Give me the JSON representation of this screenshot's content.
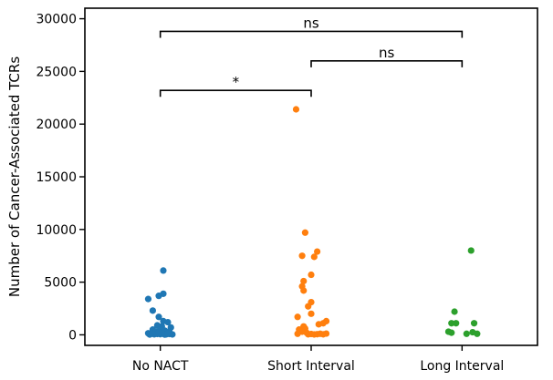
{
  "chart_data": {
    "type": "scatter",
    "style": "strip",
    "categories": [
      "No NACT",
      "Short Interval",
      "Long Interval"
    ],
    "ylabel": "Number of Cancer-Associated TCRs",
    "xlabel": "",
    "ylim": [
      -1000,
      31000
    ],
    "yticks": [
      0,
      5000,
      10000,
      15000,
      20000,
      25000,
      30000
    ],
    "grid": false,
    "series": [
      {
        "category": "No NACT",
        "color": "#1f77b4",
        "points": [
          {
            "x": -0.08,
            "y": 3400
          },
          {
            "x": -0.05,
            "y": 2300
          },
          {
            "x": -0.01,
            "y": 3700
          },
          {
            "x": 0.02,
            "y": 3900
          },
          {
            "x": 0.02,
            "y": 6100
          },
          {
            "x": -0.01,
            "y": 1700
          },
          {
            "x": 0.02,
            "y": 1300
          },
          {
            "x": 0.05,
            "y": 1200
          },
          {
            "x": -0.02,
            "y": 900
          },
          {
            "x": 0.01,
            "y": 800
          },
          {
            "x": 0.07,
            "y": 700
          },
          {
            "x": -0.05,
            "y": 500
          },
          {
            "x": 0.0,
            "y": 500
          },
          {
            "x": 0.03,
            "y": 400
          },
          {
            "x": -0.03,
            "y": 300
          },
          {
            "x": 0.06,
            "y": 300
          },
          {
            "x": -0.08,
            "y": 150
          },
          {
            "x": -0.06,
            "y": 100
          },
          {
            "x": -0.04,
            "y": 50
          },
          {
            "x": -0.02,
            "y": 80
          },
          {
            "x": 0.0,
            "y": 60
          },
          {
            "x": 0.02,
            "y": 100
          },
          {
            "x": 0.04,
            "y": 50
          },
          {
            "x": 0.06,
            "y": 80
          },
          {
            "x": 0.08,
            "y": 40
          },
          {
            "x": -0.07,
            "y": 30
          },
          {
            "x": 0.03,
            "y": 20
          },
          {
            "x": -0.01,
            "y": 200
          },
          {
            "x": 0.05,
            "y": 150
          }
        ]
      },
      {
        "category": "Short Interval",
        "color": "#ff7f0e",
        "points": [
          {
            "x": -0.1,
            "y": 21400
          },
          {
            "x": -0.04,
            "y": 9700
          },
          {
            "x": 0.04,
            "y": 7900
          },
          {
            "x": 0.02,
            "y": 7400
          },
          {
            "x": -0.06,
            "y": 7500
          },
          {
            "x": 0.0,
            "y": 5700
          },
          {
            "x": -0.05,
            "y": 5100
          },
          {
            "x": -0.06,
            "y": 4600
          },
          {
            "x": -0.05,
            "y": 4200
          },
          {
            "x": 0.0,
            "y": 3100
          },
          {
            "x": -0.02,
            "y": 2700
          },
          {
            "x": 0.0,
            "y": 2000
          },
          {
            "x": -0.09,
            "y": 1700
          },
          {
            "x": 0.1,
            "y": 1300
          },
          {
            "x": 0.08,
            "y": 1100
          },
          {
            "x": 0.05,
            "y": 1000
          },
          {
            "x": -0.05,
            "y": 800
          },
          {
            "x": -0.04,
            "y": 600
          },
          {
            "x": -0.08,
            "y": 500
          },
          {
            "x": -0.06,
            "y": 300
          },
          {
            "x": -0.09,
            "y": 100
          },
          {
            "x": -0.02,
            "y": 50
          },
          {
            "x": 0.0,
            "y": 80
          },
          {
            "x": 0.02,
            "y": 40
          },
          {
            "x": 0.04,
            "y": 60
          },
          {
            "x": 0.06,
            "y": 100
          },
          {
            "x": 0.08,
            "y": 50
          },
          {
            "x": 0.1,
            "y": 120
          },
          {
            "x": -0.03,
            "y": 200
          }
        ]
      },
      {
        "category": "Long Interval",
        "color": "#2ca02c",
        "points": [
          {
            "x": 0.06,
            "y": 8000
          },
          {
            "x": -0.05,
            "y": 2200
          },
          {
            "x": -0.07,
            "y": 1100
          },
          {
            "x": -0.04,
            "y": 1100
          },
          {
            "x": 0.08,
            "y": 1100
          },
          {
            "x": -0.09,
            "y": 300
          },
          {
            "x": -0.07,
            "y": 200
          },
          {
            "x": 0.07,
            "y": 250
          },
          {
            "x": 0.03,
            "y": 100
          },
          {
            "x": 0.1,
            "y": 100
          }
        ]
      }
    ],
    "significance": [
      {
        "from": 0,
        "to": 1,
        "label": "*",
        "y": 23200
      },
      {
        "from": 1,
        "to": 2,
        "label": "ns",
        "y": 26000
      },
      {
        "from": 0,
        "to": 2,
        "label": "ns",
        "y": 28800
      }
    ]
  }
}
